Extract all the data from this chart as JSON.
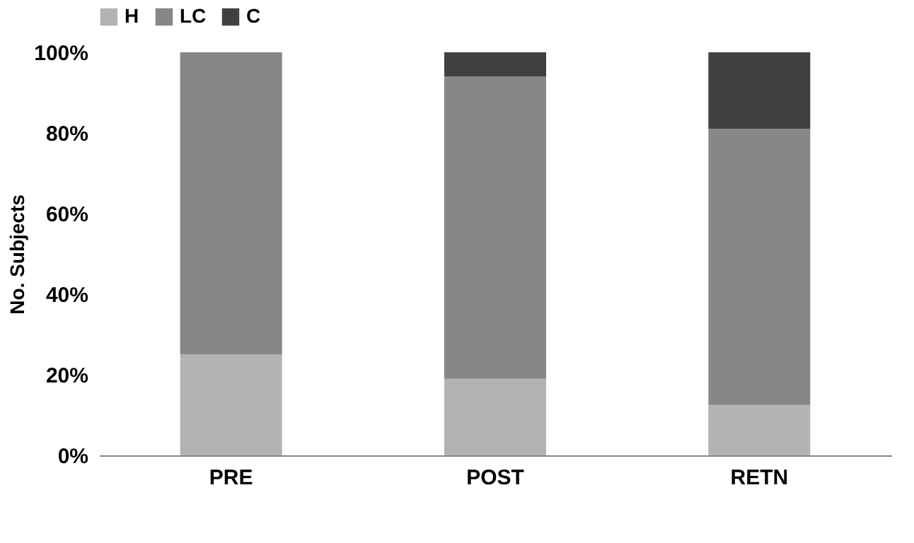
{
  "chart_data": {
    "type": "bar",
    "stacked": true,
    "ylabel": "No. Subjects",
    "categories": [
      "PRE",
      "POST",
      "RETN"
    ],
    "series": [
      {
        "name": "H",
        "color": "#b3b3b3",
        "values": [
          25,
          19,
          12.5
        ]
      },
      {
        "name": "LC",
        "color": "#878787",
        "values": [
          75,
          75,
          68.5
        ]
      },
      {
        "name": "C",
        "color": "#404040",
        "values": [
          0,
          6,
          19
        ]
      }
    ],
    "ylim": [
      0,
      100
    ],
    "yticks": [
      {
        "value": 0,
        "label": "0%"
      },
      {
        "value": 20,
        "label": "20%"
      },
      {
        "value": 40,
        "label": "40%"
      },
      {
        "value": 60,
        "label": "60%"
      },
      {
        "value": 80,
        "label": "80%"
      },
      {
        "value": 100,
        "label": "100%"
      }
    ],
    "grid": false,
    "legend": "top"
  }
}
